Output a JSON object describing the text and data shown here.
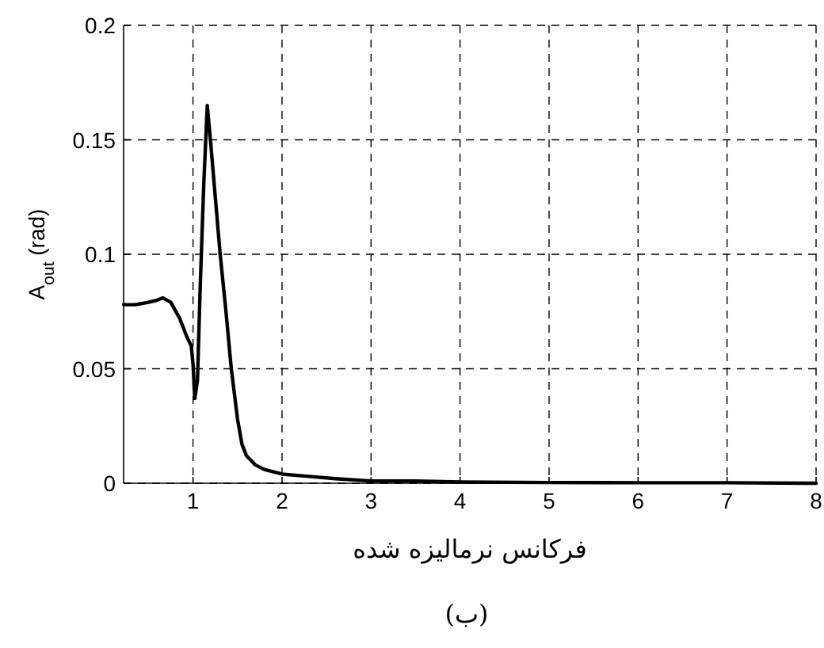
{
  "chart_data": {
    "type": "line",
    "xlabel": "فرکانس نرمالیزه شده",
    "ylabel": "A$_{out}$ (rad)",
    "annotations": [
      "(ب)"
    ],
    "x": [
      0.22,
      0.35,
      0.5,
      0.6,
      0.66,
      0.75,
      0.85,
      0.93,
      0.98,
      1.0,
      1.02,
      1.05,
      1.08,
      1.12,
      1.16,
      1.2,
      1.25,
      1.305,
      1.37,
      1.43,
      1.5,
      1.55,
      1.6,
      1.7,
      1.8,
      2.0,
      2.3,
      2.6,
      3.0,
      3.5,
      4.0,
      5.0,
      6.0,
      7.0,
      8.0
    ],
    "series": [
      {
        "color": "#000000",
        "values": [
          0.078,
          0.078,
          0.079,
          0.08,
          0.081,
          0.079,
          0.072,
          0.064,
          0.06,
          0.052,
          0.037,
          0.045,
          0.085,
          0.13,
          0.165,
          0.148,
          0.125,
          0.1,
          0.075,
          0.05,
          0.028,
          0.017,
          0.012,
          0.008,
          0.006,
          0.004,
          0.003,
          0.002,
          0.001,
          0.001,
          0.0005,
          0.0003,
          0.0002,
          0.0002,
          0.0
        ]
      }
    ],
    "xlim": [
      0.22,
      8
    ],
    "ylim": [
      0,
      0.2
    ],
    "xticks": [
      1,
      2,
      3,
      4,
      5,
      6,
      7,
      8
    ],
    "yticks": [
      0,
      0.05,
      0.1,
      0.15,
      0.2
    ],
    "grid": true,
    "line_style": "solid"
  }
}
